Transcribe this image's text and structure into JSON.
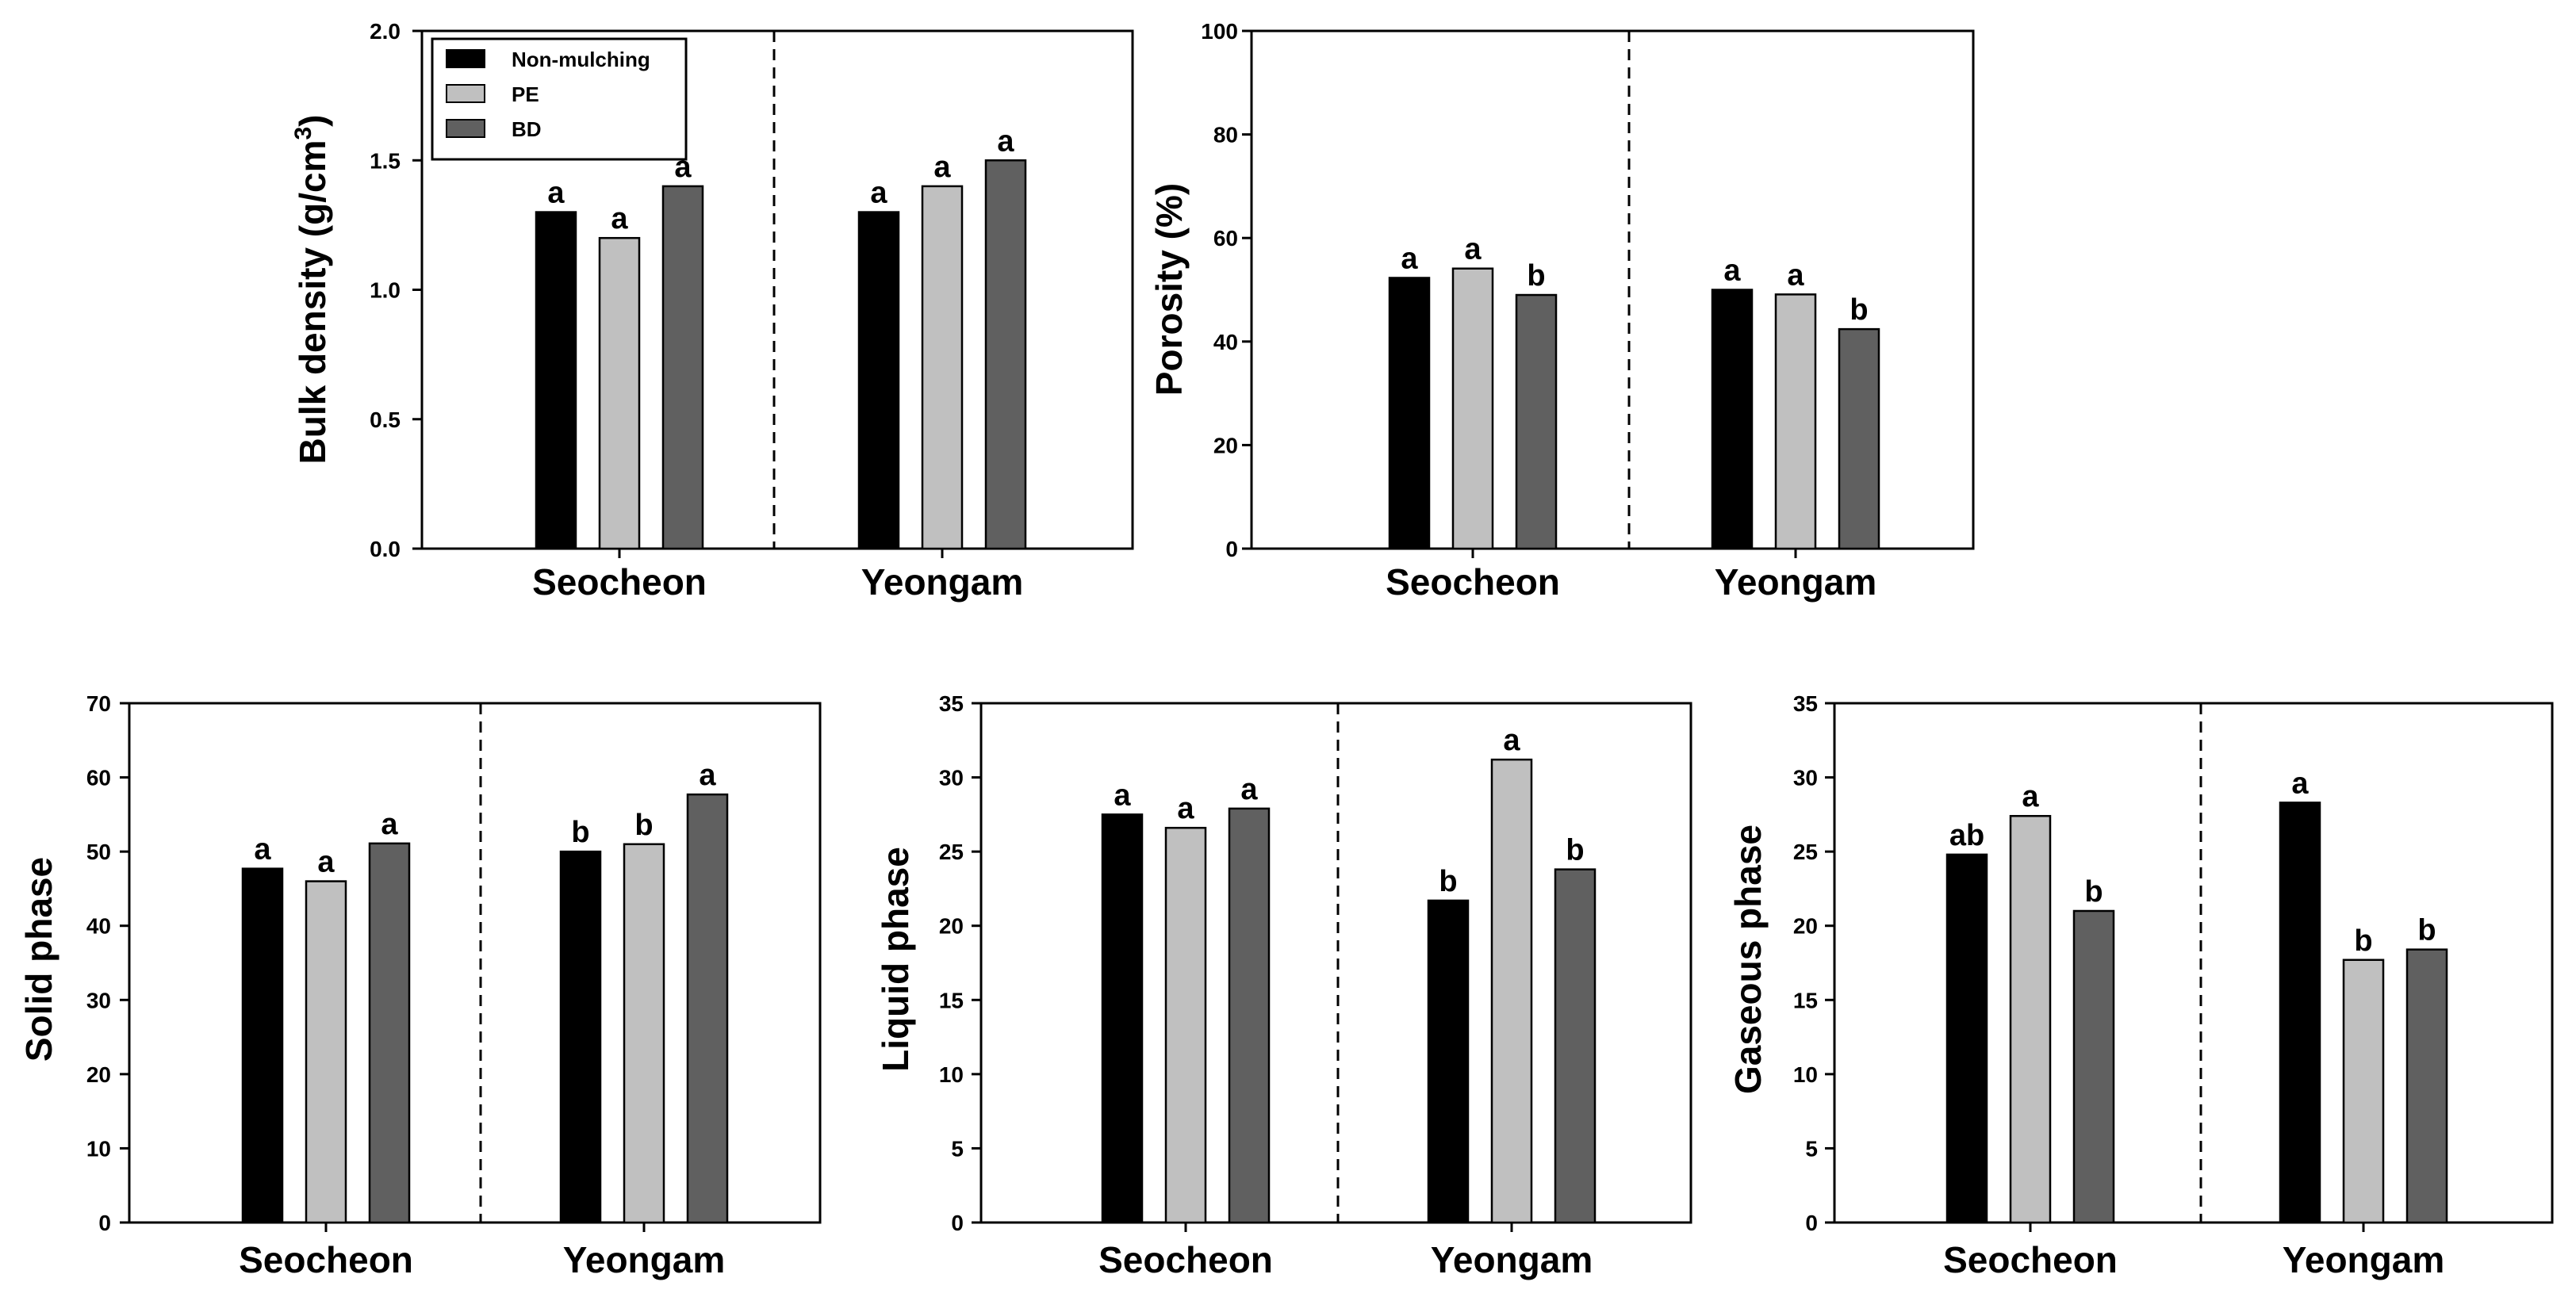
{
  "chart_data": [
    {
      "type": "bar",
      "id": "bulk-density",
      "title": "",
      "xlabel": "",
      "ylabel": "Bulk density (g/cm",
      "ylabel_sup": "3",
      "ylabel_end": ")",
      "ylim": [
        0,
        2.0
      ],
      "yticks": [
        "0.0",
        "0.5",
        "1.0",
        "1.5",
        "2.0"
      ],
      "ytick_values": [
        0,
        0.5,
        1.0,
        1.5,
        2.0
      ],
      "categories": [
        "Seocheon",
        "Yeongam"
      ],
      "series": [
        {
          "name": "Non-mulching",
          "values": [
            1.3,
            1.3
          ],
          "labels": [
            "a",
            "a"
          ]
        },
        {
          "name": "PE",
          "values": [
            1.2,
            1.4
          ],
          "labels": [
            "a",
            "a"
          ]
        },
        {
          "name": "BD",
          "values": [
            1.4,
            1.5
          ],
          "labels": [
            "a",
            "a"
          ]
        }
      ],
      "legend": {
        "position": "top-left",
        "entries": [
          "Non-mulching",
          "PE",
          "BD"
        ]
      }
    },
    {
      "type": "bar",
      "id": "porosity",
      "title": "",
      "xlabel": "",
      "ylabel": "Porosity (%)",
      "ylim": [
        0,
        100
      ],
      "yticks": [
        "0",
        "20",
        "40",
        "60",
        "80",
        "100"
      ],
      "ytick_values": [
        0,
        20,
        40,
        60,
        80,
        100
      ],
      "categories": [
        "Seocheon",
        "Yeongam"
      ],
      "series": [
        {
          "name": "Non-mulching",
          "values": [
            52.3,
            50.0
          ],
          "labels": [
            "a",
            "a"
          ]
        },
        {
          "name": "PE",
          "values": [
            54.1,
            49.1
          ],
          "labels": [
            "a",
            "a"
          ]
        },
        {
          "name": "BD",
          "values": [
            49.0,
            42.4
          ],
          "labels": [
            "b",
            "b"
          ]
        }
      ]
    },
    {
      "type": "bar",
      "id": "solid-phase",
      "title": "",
      "xlabel": "",
      "ylabel": "Solid phase",
      "ylim": [
        0,
        70
      ],
      "yticks": [
        "0",
        "10",
        "20",
        "30",
        "40",
        "50",
        "60",
        "70"
      ],
      "ytick_values": [
        0,
        10,
        20,
        30,
        40,
        50,
        60,
        70
      ],
      "categories": [
        "Seocheon",
        "Yeongam"
      ],
      "series": [
        {
          "name": "Non-mulching",
          "values": [
            47.7,
            50.0
          ],
          "labels": [
            "a",
            "b"
          ]
        },
        {
          "name": "PE",
          "values": [
            46.0,
            51.0
          ],
          "labels": [
            "a",
            "b"
          ]
        },
        {
          "name": "BD",
          "values": [
            51.1,
            57.7
          ],
          "labels": [
            "a",
            "a"
          ]
        }
      ]
    },
    {
      "type": "bar",
      "id": "liquid-phase",
      "title": "",
      "xlabel": "",
      "ylabel": "Liquid phase",
      "ylim": [
        0,
        35
      ],
      "yticks": [
        "0",
        "5",
        "10",
        "15",
        "20",
        "25",
        "30",
        "35"
      ],
      "ytick_values": [
        0,
        5,
        10,
        15,
        20,
        25,
        30,
        35
      ],
      "categories": [
        "Seocheon",
        "Yeongam"
      ],
      "series": [
        {
          "name": "Non-mulching",
          "values": [
            27.5,
            21.7
          ],
          "labels": [
            "a",
            "b"
          ]
        },
        {
          "name": "PE",
          "values": [
            26.6,
            31.2
          ],
          "labels": [
            "a",
            "a"
          ]
        },
        {
          "name": "BD",
          "values": [
            27.9,
            23.8
          ],
          "labels": [
            "a",
            "b"
          ]
        }
      ]
    },
    {
      "type": "bar",
      "id": "gaseous-phase",
      "title": "",
      "xlabel": "",
      "ylabel": "Gaseous phase",
      "ylim": [
        0,
        35
      ],
      "yticks": [
        "0",
        "5",
        "10",
        "15",
        "20",
        "25",
        "30",
        "35"
      ],
      "ytick_values": [
        0,
        5,
        10,
        15,
        20,
        25,
        30,
        35
      ],
      "categories": [
        "Seocheon",
        "Yeongam"
      ],
      "series": [
        {
          "name": "Non-mulching",
          "values": [
            24.8,
            28.3
          ],
          "labels": [
            "ab",
            "a"
          ]
        },
        {
          "name": "PE",
          "values": [
            27.4,
            17.7
          ],
          "labels": [
            "a",
            "b"
          ]
        },
        {
          "name": "BD",
          "values": [
            21.0,
            18.4
          ],
          "labels": [
            "b",
            "b"
          ]
        }
      ]
    }
  ],
  "colors": {
    "Non-mulching": "#000000",
    "PE": "#c0c0c0",
    "BD": "#606060",
    "axis": "#000000",
    "background": "#ffffff"
  }
}
